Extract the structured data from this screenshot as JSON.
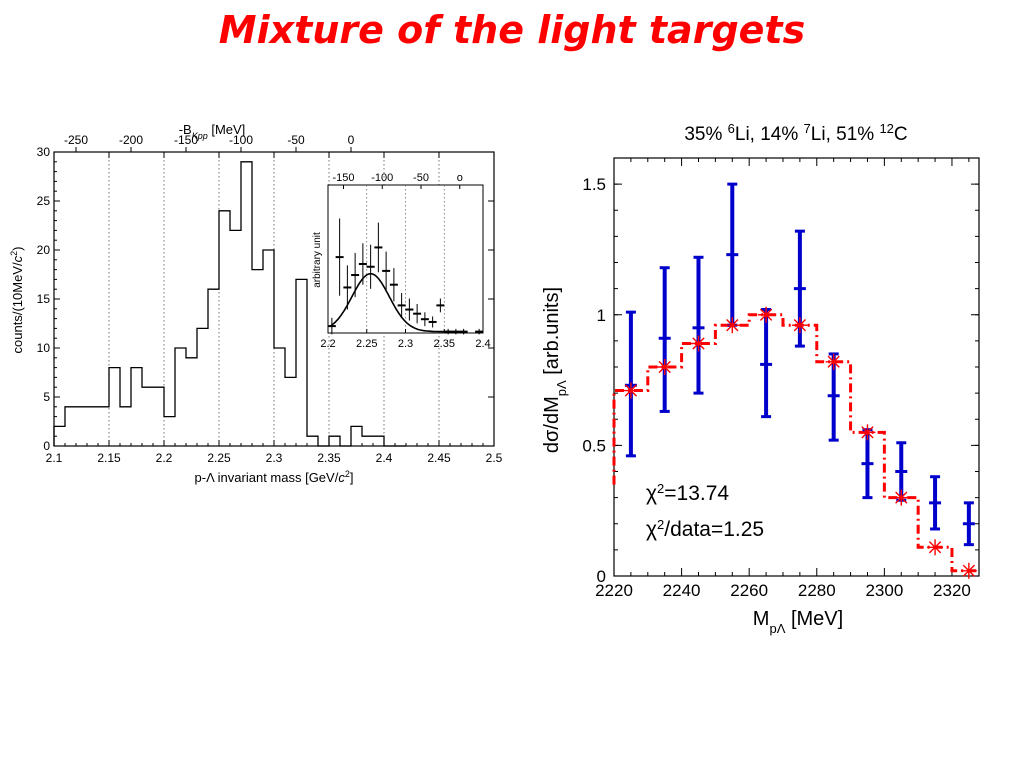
{
  "slide": {
    "title": "Mixture of the light targets"
  },
  "chart_data": [
    {
      "type": "histogram",
      "xlabel": "p-Λ invariant mass [GeV/c²]",
      "ylabel": "counts/(10MeV/c²)",
      "top_axis_label": "-B_Kpp [MeV]",
      "top_axis_ticks": [
        "-250",
        "-200",
        "-150",
        "-100",
        "-50",
        "0"
      ],
      "x_ticks": [
        "2.1",
        "2.15",
        "2.2",
        "2.25",
        "2.3",
        "2.35",
        "2.4",
        "2.45",
        "2.5"
      ],
      "y_ticks": [
        "0",
        "5",
        "10",
        "15",
        "20",
        "25",
        "30"
      ],
      "xlim": [
        2.1,
        2.5
      ],
      "ylim": [
        0,
        30
      ],
      "bin_width": 0.01,
      "bin_starts": [
        2.1,
        2.11,
        2.12,
        2.13,
        2.14,
        2.15,
        2.16,
        2.17,
        2.18,
        2.19,
        2.2,
        2.21,
        2.22,
        2.23,
        2.24,
        2.25,
        2.26,
        2.27,
        2.28,
        2.29,
        2.3,
        2.31,
        2.32,
        2.33,
        2.34,
        2.35,
        2.36,
        2.37,
        2.38,
        2.39,
        2.4,
        2.41
      ],
      "counts": [
        2,
        4,
        4,
        4,
        4,
        8,
        4,
        8,
        6,
        6,
        3,
        10,
        9,
        12,
        16,
        24,
        22,
        29,
        18,
        20,
        10,
        7,
        17,
        1,
        0,
        1,
        0,
        2,
        1,
        1,
        0,
        0
      ],
      "grid": "vertical dotted",
      "inset": {
        "ylabel": "arbitrary unit",
        "x_ticks": [
          "2.2",
          "2.25",
          "2.3",
          "2.35",
          "2.4"
        ],
        "top_ticks": [
          "-150",
          "-100",
          "-50",
          "o"
        ],
        "xlim": [
          2.2,
          2.4
        ],
        "ylim": [
          0,
          1
        ],
        "points": [
          {
            "x": 2.205,
            "y": 0.05,
            "err": 0.06
          },
          {
            "x": 2.215,
            "y": 0.55,
            "err": 0.28
          },
          {
            "x": 2.225,
            "y": 0.33,
            "err": 0.16
          },
          {
            "x": 2.235,
            "y": 0.42,
            "err": 0.16
          },
          {
            "x": 2.245,
            "y": 0.5,
            "err": 0.15
          },
          {
            "x": 2.255,
            "y": 0.48,
            "err": 0.16
          },
          {
            "x": 2.265,
            "y": 0.62,
            "err": 0.18
          },
          {
            "x": 2.275,
            "y": 0.45,
            "err": 0.14
          },
          {
            "x": 2.285,
            "y": 0.35,
            "err": 0.12
          },
          {
            "x": 2.295,
            "y": 0.2,
            "err": 0.09
          },
          {
            "x": 2.305,
            "y": 0.17,
            "err": 0.08
          },
          {
            "x": 2.315,
            "y": 0.14,
            "err": 0.07
          },
          {
            "x": 2.325,
            "y": 0.1,
            "err": 0.05
          },
          {
            "x": 2.335,
            "y": 0.08,
            "err": 0.04
          },
          {
            "x": 2.345,
            "y": 0.2,
            "err": 0.05
          },
          {
            "x": 2.355,
            "y": 0.01,
            "err": 0.02
          },
          {
            "x": 2.365,
            "y": 0.01,
            "err": 0.02
          },
          {
            "x": 2.375,
            "y": 0.01,
            "err": 0.02
          },
          {
            "x": 2.395,
            "y": 0.01,
            "err": 0.02
          }
        ],
        "fit_curve": {
          "amplitude": 0.42,
          "mean": 2.255,
          "sigma": 0.024
        }
      }
    },
    {
      "type": "scatter",
      "title": "35% ⁶Li, 14% ⁷Li, 51% ¹²C",
      "xlabel": "M_pΛ [MeV]",
      "ylabel": "dσ/dM_pΛ [arb.units]",
      "x_ticks": [
        "2220",
        "2240",
        "2260",
        "2280",
        "2300",
        "2320"
      ],
      "y_ticks": [
        "0",
        "0.5",
        "1",
        "1.5"
      ],
      "xlim": [
        2220,
        2328
      ],
      "ylim": [
        0,
        1.6
      ],
      "annotations": [
        "χ²=13.74",
        "χ²/data=1.25"
      ],
      "series": [
        {
          "color": "#0000cc",
          "marker": "error-bar",
          "points": [
            {
              "x": 2225,
              "y": 0.73,
              "lo": 0.46,
              "hi": 1.01
            },
            {
              "x": 2235,
              "y": 0.91,
              "lo": 0.63,
              "hi": 1.18
            },
            {
              "x": 2245,
              "y": 0.95,
              "lo": 0.7,
              "hi": 1.22
            },
            {
              "x": 2255,
              "y": 1.23,
              "lo": 0.96,
              "hi": 1.5
            },
            {
              "x": 2265,
              "y": 0.81,
              "lo": 0.61,
              "hi": 1.02
            },
            {
              "x": 2275,
              "y": 1.1,
              "lo": 0.88,
              "hi": 1.32
            },
            {
              "x": 2285,
              "y": 0.69,
              "lo": 0.52,
              "hi": 0.85
            },
            {
              "x": 2295,
              "y": 0.43,
              "lo": 0.3,
              "hi": 0.56
            },
            {
              "x": 2305,
              "y": 0.4,
              "lo": 0.29,
              "hi": 0.51
            },
            {
              "x": 2315,
              "y": 0.28,
              "lo": 0.18,
              "hi": 0.38
            },
            {
              "x": 2325,
              "y": 0.2,
              "lo": 0.12,
              "hi": 0.28
            }
          ]
        },
        {
          "color": "#ff0000",
          "marker": "asterisk",
          "line": "dash-dot step",
          "x": [
            2225,
            2235,
            2245,
            2255,
            2265,
            2275,
            2285,
            2295,
            2305,
            2315,
            2325
          ],
          "y": [
            0.71,
            0.8,
            0.89,
            0.96,
            1.0,
            0.96,
            0.82,
            0.55,
            0.3,
            0.11,
            0.02
          ]
        }
      ]
    }
  ]
}
